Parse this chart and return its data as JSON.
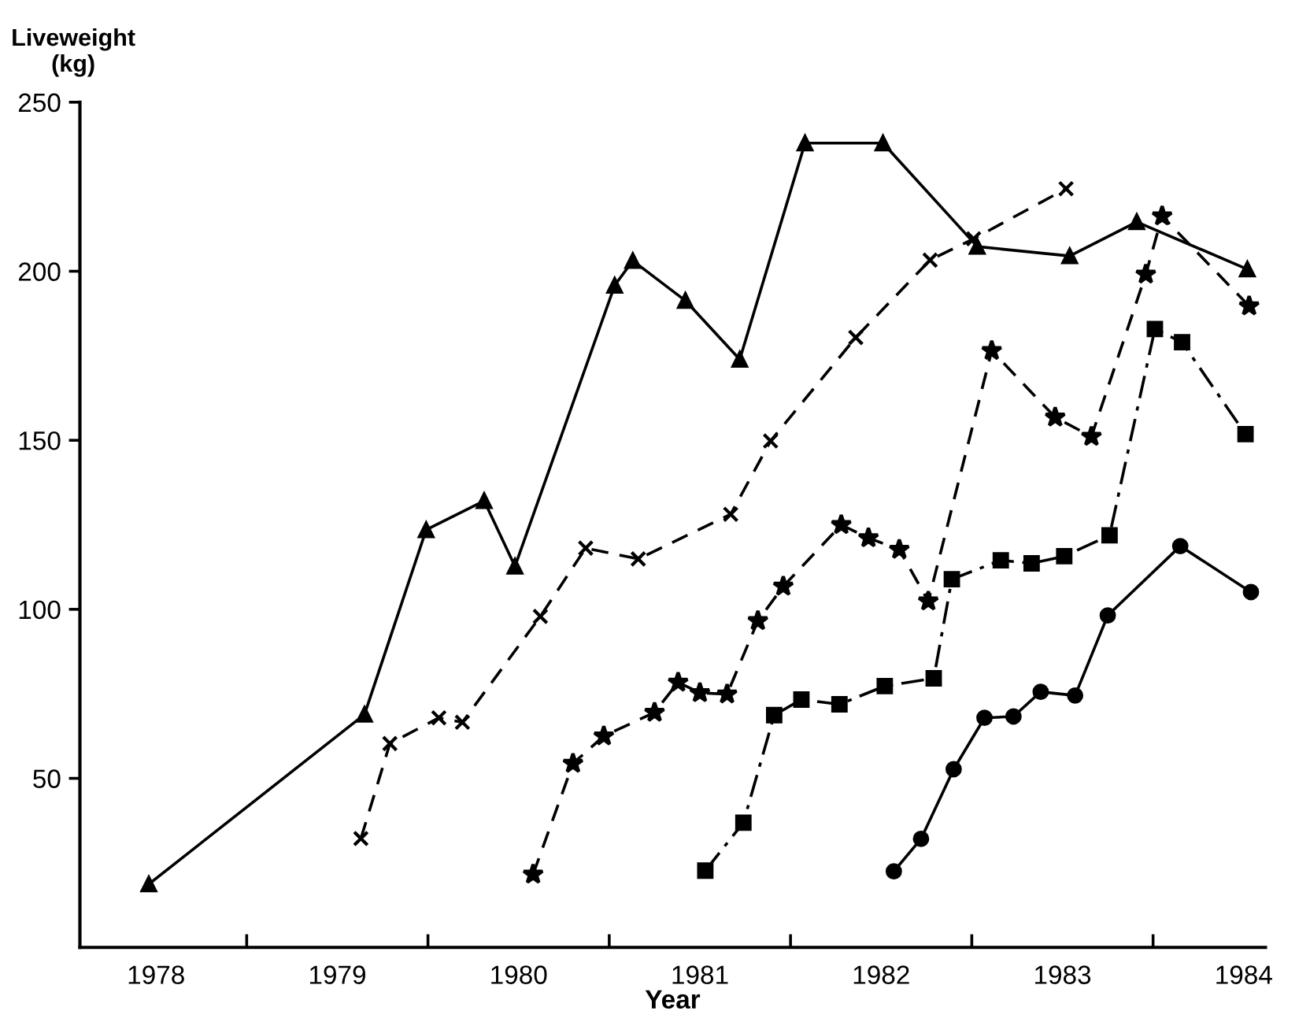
{
  "chart_data": {
    "type": "line",
    "ylabel": "Liveweight\n(kg)",
    "xlabel": "Year",
    "xlim": [
      1977.58,
      1984.12
    ],
    "ylim": [
      0,
      250
    ],
    "yticks": [
      50,
      100,
      150,
      200,
      250
    ],
    "xticks": [
      {
        "value": 1978.5,
        "label": null
      },
      {
        "value": 1979.5,
        "label": null
      },
      {
        "value": 1980.5,
        "label": null
      },
      {
        "value": 1981.5,
        "label": null
      },
      {
        "value": 1982.5,
        "label": null
      },
      {
        "value": 1983.5,
        "label": null
      },
      1978,
      1979,
      1980,
      1981,
      1982,
      1983,
      1984
    ],
    "grid": false,
    "series": [
      {
        "color": "#000000",
        "marker": "triangle",
        "line_style": "solid",
        "x": [
          1977.96,
          1979.15,
          1979.49,
          1979.81,
          1979.98,
          1980.53,
          1980.63,
          1980.92,
          1981.22,
          1981.58,
          1982.01,
          1982.53,
          1983.04,
          1983.41,
          1984.02
        ],
        "values": [
          18.7,
          68.9,
          123.5,
          132.1,
          112.7,
          195.8,
          203.1,
          191.3,
          173.9,
          237.9,
          237.9,
          207.3,
          204.5,
          214.6,
          200.6
        ]
      },
      {
        "color": "#000000",
        "marker": "cross",
        "line_style": "dashed",
        "x": [
          1979.13,
          1979.29,
          1979.56,
          1979.69,
          1980.12,
          1980.37,
          1980.66,
          1981.17,
          1981.39,
          1981.86,
          1982.27,
          1982.51,
          1983.02
        ],
        "values": [
          32.2,
          60.3,
          67.9,
          66.6,
          97.9,
          118.1,
          114.9,
          128.1,
          149.8,
          180.4,
          203.3,
          209.6,
          224.4
        ]
      },
      {
        "color": "#000000",
        "marker": "star",
        "line_style": "dashed",
        "x": [
          1980.08,
          1980.3,
          1980.47,
          1980.75,
          1980.88,
          1981.0,
          1981.15,
          1981.32,
          1981.46,
          1981.78,
          1981.93,
          1982.1,
          1982.26,
          1982.61,
          1982.96,
          1983.16,
          1983.46,
          1983.55,
          1984.03
        ],
        "values": [
          21.6,
          54.4,
          62.5,
          69.5,
          78.4,
          75.3,
          74.9,
          96.6,
          106.8,
          125.0,
          121.1,
          117.7,
          102.4,
          176.5,
          156.8,
          151.1,
          199.1,
          216.3,
          189.7
        ]
      },
      {
        "color": "#000000",
        "marker": "square",
        "line_style": "dashdot",
        "x": [
          1981.03,
          1981.24,
          1981.41,
          1981.56,
          1981.77,
          1982.02,
          1982.29,
          1982.39,
          1982.66,
          1982.83,
          1983.01,
          1983.26,
          1983.51,
          1983.66,
          1984.01
        ],
        "values": [
          22.7,
          36.9,
          68.7,
          73.3,
          71.9,
          77.3,
          79.6,
          108.9,
          114.5,
          113.6,
          115.7,
          121.9,
          182.9,
          179.0,
          151.8
        ]
      },
      {
        "color": "#000000",
        "marker": "circle",
        "line_style": "solid",
        "x": [
          1982.07,
          1982.22,
          1982.4,
          1982.57,
          1982.73,
          1982.88,
          1983.07,
          1983.25,
          1983.65,
          1984.04
        ],
        "values": [
          22.5,
          32.1,
          52.7,
          67.9,
          68.3,
          75.6,
          74.5,
          98.2,
          118.7,
          105.1
        ]
      }
    ]
  }
}
